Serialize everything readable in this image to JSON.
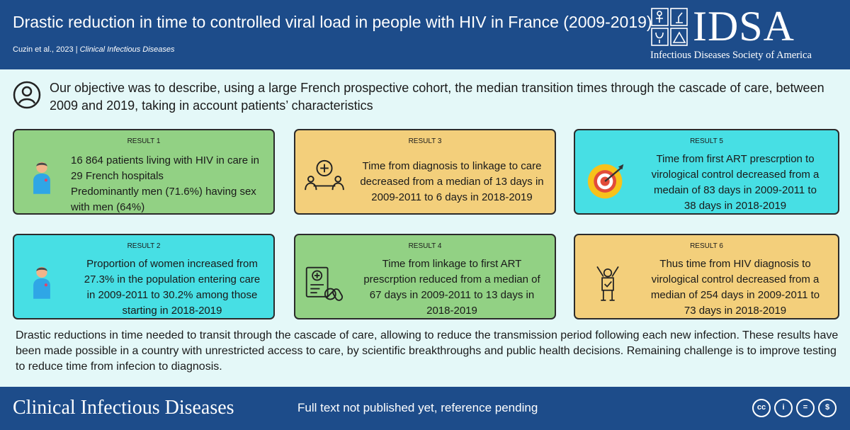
{
  "header": {
    "title": "Drastic reduction in time to controlled viral load in people with HIV in France (2009-2019)",
    "citation": "Cuzin et al., 2023",
    "separator": "|",
    "journal": "Clinical Infectious Diseases",
    "logo_text": "IDSA",
    "logo_subtitle": "Infectious Diseases Society of America"
  },
  "objective": {
    "icon": "user-icon",
    "text": "Our objective was to describe, using a large French prospective cohort, the median transition times through the cascade of care, between 2009 and 2019, taking in account patients’ characteristics"
  },
  "results": [
    {
      "label": "RESULT 1",
      "color": "#92d184",
      "icon": "person-icon",
      "lines": [
        "16 864 patients living with HIV in care in",
        "29 French hospitals",
        "Predominantly men (71.6%) having sex",
        "with men (64%)"
      ]
    },
    {
      "label": "RESULT 2",
      "color": "#47dfe4",
      "icon": "person-icon",
      "lines": [
        "Proportion of women increased from",
        "27.3% in the population entering care",
        "in 2009-2011 to 30.2% among those",
        "starting in 2018-2019"
      ]
    },
    {
      "label": "RESULT 3",
      "color": "#f3cf7b",
      "icon": "care-linkage-icon",
      "lines": [
        "Time from diagnosis to linkage to care",
        "decreased from a median of 13 days in",
        "2009-2011 to 6 days in 2018-2019"
      ]
    },
    {
      "label": "RESULT 4",
      "color": "#92d184",
      "icon": "prescription-icon",
      "lines": [
        "Time from linkage to first ART",
        "prescrption reduced from a median of",
        "67 days in 2009-2011 to 13 days in",
        "2018-2019"
      ]
    },
    {
      "label": "RESULT 5",
      "color": "#47dfe4",
      "icon": "target-icon",
      "lines": [
        "Time from first ART prescrption to",
        "virological control decreased from  a",
        "medain of 83 days in 2009-2011 to",
        "38 days in 2018-2019"
      ]
    },
    {
      "label": "RESULT 6",
      "color": "#f3cf7b",
      "icon": "celebration-icon",
      "lines": [
        "Thus time from HIV diagnosis to",
        "virological control decreased from a",
        "median of 254 days in 2009-2011 to",
        "73 days in 2018-2019"
      ]
    }
  ],
  "conclusion": "Drastic reductions in time needed to transit through the cascade of care, allowing to reduce the transmission period following each new infection. These results have been made possible in a country with unrestricted access to care, by scientific breakthroughs and public health decisions. Remaining challenge is to improve testing to reduce time from infecion to diagnosis.",
  "footer": {
    "journal": "Clinical Infectious Diseases",
    "note": "Full text not published yet, reference pending",
    "license_icons": [
      "cc-icon",
      "by-icon",
      "nd-icon",
      "nc-icon"
    ],
    "license_glyphs": [
      "cc",
      "i",
      "=",
      "$"
    ]
  }
}
